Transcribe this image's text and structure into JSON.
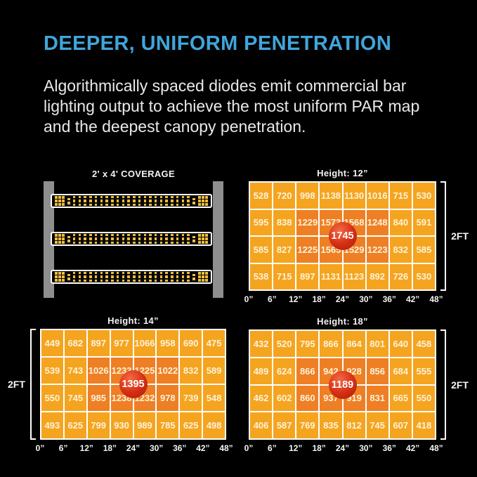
{
  "header": {
    "title": "DEEPER, UNIFORM PENETRATION",
    "description_lines": [
      "Algorithmically spaced diodes emit commercial bar",
      "lighting output to achieve the most uniform PAR map",
      "and the deepest canopy penetration."
    ]
  },
  "coverage": {
    "label": "2' x 4' COVERAGE"
  },
  "colors": {
    "background": "#000000",
    "accent_blue": "#3FA6DB",
    "body_text": "#E9E9E9",
    "cell_orange": "#F5A41F",
    "cell_hot_orange": "#EE7F24",
    "peak_red": "#D62F14",
    "diode_amber": "#EFBE3E",
    "rail_gray": "#8E8E8E",
    "grid_line_white": "#FFFFFF"
  },
  "chart_data": [
    {
      "type": "heatmap",
      "title": "Height: 12”",
      "x_ticks": [
        "0”",
        "6”",
        "12”",
        "18”",
        "24”",
        "30”",
        "36”",
        "42”",
        "48”"
      ],
      "side_label": "2FT",
      "peak": 1745,
      "rows": [
        [
          528,
          720,
          998,
          1138,
          1130,
          1016,
          715,
          530
        ],
        [
          595,
          838,
          1229,
          1573,
          1568,
          1248,
          840,
          591
        ],
        [
          585,
          827,
          1225,
          1565,
          1529,
          1223,
          832,
          585
        ],
        [
          538,
          715,
          897,
          1131,
          1123,
          892,
          726,
          530
        ]
      ],
      "hot_rows": [
        1,
        2
      ],
      "hot_cols": [
        2,
        3,
        4,
        5
      ]
    },
    {
      "type": "heatmap",
      "title": "Height: 14”",
      "x_ticks": [
        "0”",
        "6”",
        "12”",
        "18”",
        "24”",
        "30”",
        "36”",
        "42”",
        "48”"
      ],
      "side_label": "2FT",
      "peak": 1395,
      "rows": [
        [
          449,
          682,
          897,
          977,
          1066,
          958,
          690,
          475
        ],
        [
          539,
          743,
          1026,
          1233,
          1225,
          1022,
          832,
          589
        ],
        [
          550,
          745,
          985,
          1238,
          1232,
          978,
          739,
          548
        ],
        [
          493,
          625,
          799,
          930,
          989,
          785,
          625,
          498
        ]
      ],
      "hot_rows": [
        1,
        2
      ],
      "hot_cols": [
        2,
        3,
        4,
        5
      ]
    },
    {
      "type": "heatmap",
      "title": "Height: 18”",
      "x_ticks": [
        "0”",
        "6”",
        "12”",
        "18”",
        "24”",
        "30”",
        "36”",
        "42”",
        "48”"
      ],
      "side_label": "2FT",
      "peak": 1189,
      "rows": [
        [
          432,
          520,
          795,
          866,
          864,
          801,
          640,
          458
        ],
        [
          489,
          624,
          866,
          942,
          928,
          856,
          684,
          555
        ],
        [
          462,
          602,
          860,
          937,
          919,
          831,
          665,
          550
        ],
        [
          406,
          587,
          769,
          835,
          812,
          745,
          607,
          418
        ]
      ],
      "hot_rows": [
        1,
        2
      ],
      "hot_cols": [
        2,
        3,
        4,
        5
      ]
    }
  ]
}
